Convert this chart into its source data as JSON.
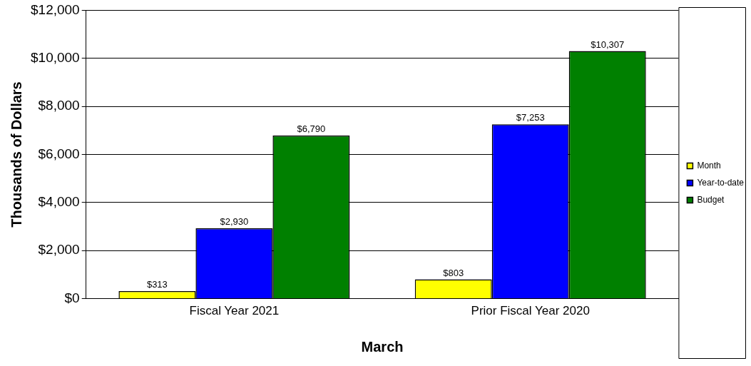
{
  "chart_data": {
    "type": "bar",
    "xlabel": "March",
    "ylabel": "Thousands of Dollars",
    "categories": [
      "Fiscal Year 2021",
      "Prior Fiscal Year 2020"
    ],
    "series": [
      {
        "name": "Month",
        "color": "#ffff00",
        "values": [
          313,
          803
        ],
        "value_labels": [
          "$313",
          "$803"
        ]
      },
      {
        "name": "Year-to-date",
        "color": "#0000ff",
        "values": [
          2930,
          7253
        ],
        "value_labels": [
          "$2,930",
          "$7,253"
        ]
      },
      {
        "name": "Budget",
        "color": "#008000",
        "values": [
          6790,
          10307
        ],
        "value_labels": [
          "$6,790",
          "$10,307"
        ]
      }
    ],
    "ylim": [
      0,
      12000
    ],
    "yticks": [
      {
        "value": 0,
        "label": "$0"
      },
      {
        "value": 2000,
        "label": "$2,000"
      },
      {
        "value": 4000,
        "label": "$4,000"
      },
      {
        "value": 6000,
        "label": "$6,000"
      },
      {
        "value": 8000,
        "label": "$8,000"
      },
      {
        "value": 10000,
        "label": "$10,000"
      },
      {
        "value": 12000,
        "label": "$12,000"
      }
    ],
    "grid": "y",
    "legend": "right"
  }
}
